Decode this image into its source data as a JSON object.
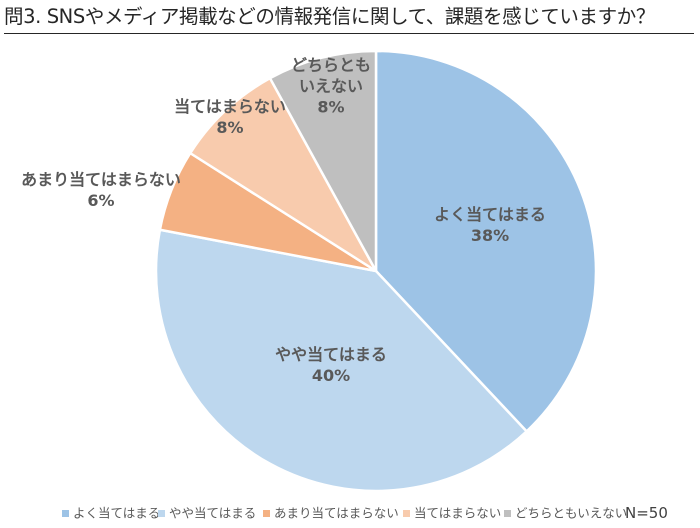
{
  "title": "問3. SNSやメディア掲載などの情報発信に関して、課題を感じていますか？",
  "footnote": "N=50",
  "chart_data": {
    "type": "pie",
    "start_angle": "12 o'clock",
    "direction": "clockwise",
    "legend_position": "bottom",
    "slices": [
      {
        "label": "よく当てはまる",
        "label_lines": [
          "よく当てはまる"
        ],
        "value": 38,
        "value_label": "38%",
        "color": "#9DC3E6"
      },
      {
        "label": "やや当てはまる",
        "label_lines": [
          "やや当てはまる"
        ],
        "value": 40,
        "value_label": "40%",
        "color": "#BDD7EE"
      },
      {
        "label": "あまり当てはまらない",
        "label_lines": [
          "あまり当てはまらない"
        ],
        "value": 6,
        "value_label": "6%",
        "color": "#F4B183"
      },
      {
        "label": "当てはまらない",
        "label_lines": [
          "当てはまらない"
        ],
        "value": 8,
        "value_label": "8%",
        "color": "#F8CBAD"
      },
      {
        "label": "どちらともいえない",
        "label_lines": [
          "どちらとも",
          "いえない"
        ],
        "value": 8,
        "value_label": "8%",
        "color": "#BFBFBF"
      }
    ]
  }
}
